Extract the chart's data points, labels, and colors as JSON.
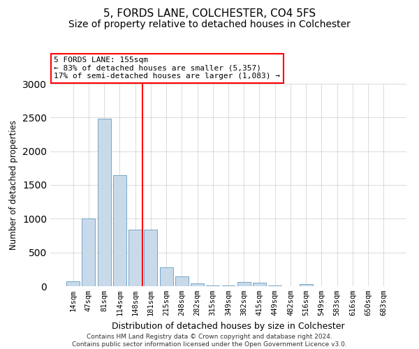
{
  "title": "5, FORDS LANE, COLCHESTER, CO4 5FS",
  "subtitle": "Size of property relative to detached houses in Colchester",
  "xlabel": "Distribution of detached houses by size in Colchester",
  "ylabel": "Number of detached properties",
  "categories": [
    "14sqm",
    "47sqm",
    "81sqm",
    "114sqm",
    "148sqm",
    "181sqm",
    "215sqm",
    "248sqm",
    "282sqm",
    "315sqm",
    "349sqm",
    "382sqm",
    "415sqm",
    "449sqm",
    "482sqm",
    "516sqm",
    "549sqm",
    "583sqm",
    "616sqm",
    "650sqm",
    "683sqm"
  ],
  "values": [
    75,
    1000,
    2480,
    1650,
    840,
    840,
    280,
    140,
    45,
    10,
    10,
    60,
    55,
    10,
    0,
    30,
    0,
    0,
    0,
    0,
    5
  ],
  "bar_color": "#c8daea",
  "bar_edge_color": "#6699bb",
  "vline_x": 4.48,
  "vline_color": "red",
  "annotation_text": "5 FORDS LANE: 155sqm\n← 83% of detached houses are smaller (5,357)\n17% of semi-detached houses are larger (1,083) →",
  "annotation_box_color": "white",
  "annotation_box_edge_color": "red",
  "ylim": [
    0,
    3000
  ],
  "footnote": "Contains HM Land Registry data © Crown copyright and database right 2024.\nContains public sector information licensed under the Open Government Licence v3.0.",
  "title_fontsize": 11,
  "subtitle_fontsize": 10,
  "xlabel_fontsize": 9,
  "ylabel_fontsize": 8.5,
  "tick_fontsize": 7.5,
  "annotation_fontsize": 8,
  "footnote_fontsize": 6.5
}
